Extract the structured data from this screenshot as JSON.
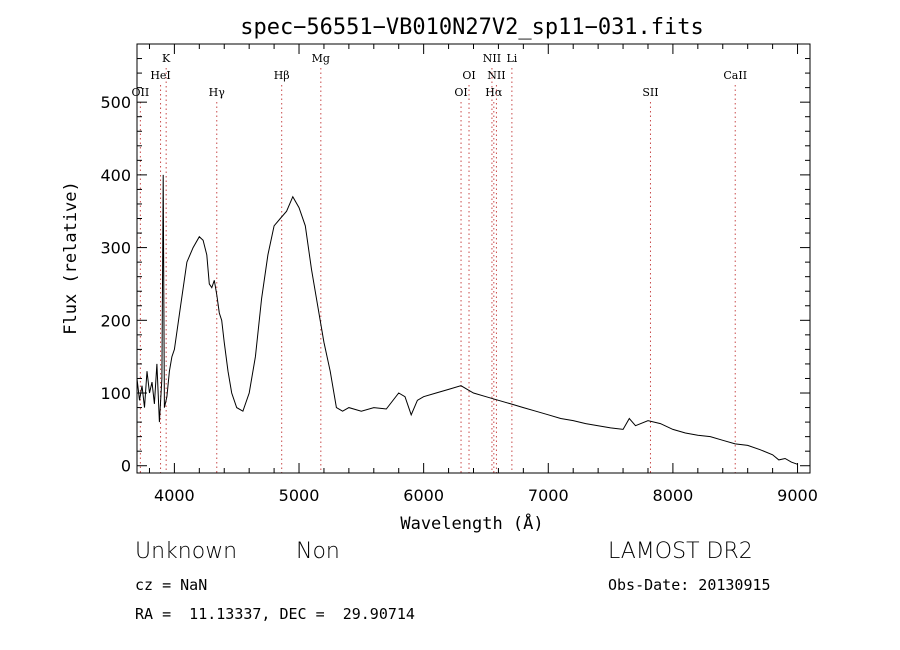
{
  "chart_data": {
    "type": "line",
    "title": "spec−56551−VB010N27V2_sp11−031.fits",
    "xlabel": "Wavelength (Å)",
    "ylabel": "Flux (relative)",
    "xlim": [
      3700,
      9100
    ],
    "ylim": [
      -10,
      580
    ],
    "xticks": [
      4000,
      5000,
      6000,
      7000,
      8000,
      9000
    ],
    "yticks": [
      0,
      100,
      200,
      300,
      400,
      500
    ],
    "grid": false,
    "line_color": "#000000",
    "marker_color": "#c84a4a",
    "series": [
      {
        "x": [
          3700,
          3720,
          3740,
          3760,
          3780,
          3800,
          3820,
          3840,
          3860,
          3880,
          3900,
          3910,
          3920,
          3940,
          3960,
          3980,
          4000,
          4050,
          4100,
          4150,
          4200,
          4230,
          4260,
          4280,
          4300,
          4320,
          4340,
          4360,
          4380,
          4400,
          4430,
          4460,
          4500,
          4550,
          4600,
          4650,
          4700,
          4750,
          4800,
          4850,
          4900,
          4950,
          5000,
          5050,
          5100,
          5150,
          5200,
          5250,
          5300,
          5350,
          5400,
          5500,
          5600,
          5700,
          5800,
          5850,
          5900,
          5950,
          6000,
          6100,
          6200,
          6300,
          6350,
          6400,
          6500,
          6600,
          6700,
          6800,
          6900,
          7000,
          7100,
          7200,
          7300,
          7400,
          7500,
          7600,
          7650,
          7700,
          7800,
          7900,
          8000,
          8100,
          8200,
          8300,
          8400,
          8500,
          8600,
          8700,
          8800,
          8850,
          8900,
          8950,
          9000
        ],
        "y": [
          120,
          90,
          110,
          80,
          130,
          100,
          115,
          85,
          140,
          60,
          120,
          400,
          80,
          95,
          130,
          150,
          160,
          220,
          280,
          300,
          315,
          310,
          290,
          250,
          245,
          255,
          235,
          210,
          200,
          170,
          130,
          100,
          80,
          75,
          100,
          150,
          230,
          290,
          330,
          340,
          350,
          370,
          355,
          330,
          270,
          220,
          170,
          130,
          80,
          75,
          80,
          75,
          80,
          78,
          100,
          95,
          70,
          90,
          95,
          100,
          105,
          110,
          105,
          100,
          95,
          90,
          85,
          80,
          75,
          70,
          65,
          62,
          58,
          55,
          52,
          50,
          65,
          55,
          62,
          58,
          50,
          45,
          42,
          40,
          35,
          30,
          28,
          22,
          15,
          8,
          10,
          5,
          2
        ]
      }
    ],
    "lines": [
      {
        "label": "OII",
        "x": 3727,
        "row": 3
      },
      {
        "label": "K",
        "x": 3934,
        "row": 1
      },
      {
        "label": "HeI",
        "x": 3889,
        "row": 2
      },
      {
        "label": "Hγ",
        "x": 4340,
        "row": 3
      },
      {
        "label": "Hβ",
        "x": 4861,
        "row": 2
      },
      {
        "label": "Mg",
        "x": 5175,
        "row": 1
      },
      {
        "label": "OI",
        "x": 6300,
        "row": 3
      },
      {
        "label": "OI",
        "x": 6364,
        "row": 2
      },
      {
        "label": "NII",
        "x": 6548,
        "row": 1
      },
      {
        "label": "Hα",
        "x": 6563,
        "row": 3
      },
      {
        "label": "NII",
        "x": 6584,
        "row": 2
      },
      {
        "label": "Li",
        "x": 6708,
        "row": 1
      },
      {
        "label": "SII",
        "x": 7820,
        "row": 3
      },
      {
        "label": "CaII",
        "x": 8500,
        "row": 2
      }
    ]
  },
  "info": {
    "class": "Unknown",
    "subclass": "Non",
    "survey": "LAMOST DR2",
    "cz": "cz = NaN",
    "obsdate": "Obs-Date: 20130915",
    "coords": "RA =  11.13337, DEC =  29.90714"
  }
}
